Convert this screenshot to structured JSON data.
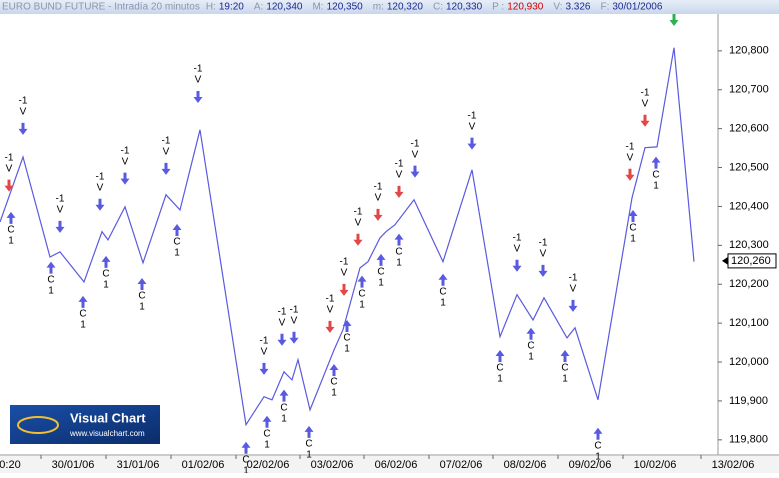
{
  "header": {
    "title": "EURO BUND FUTURE - Intradía 20 minutos",
    "fields": [
      {
        "label": "H:",
        "value": "19:20"
      },
      {
        "label": "A:",
        "value": "120,340"
      },
      {
        "label": "M:",
        "value": "120,350"
      },
      {
        "label": "m:",
        "value": "120,320"
      },
      {
        "label": "C:",
        "value": "120,330"
      },
      {
        "label": "P :",
        "value": "120,930",
        "color": "#d00000"
      },
      {
        "label": "V:",
        "value": "3.326"
      },
      {
        "label": "F:",
        "value": "30/01/2006"
      }
    ]
  },
  "logo": {
    "name": "Visual Chart",
    "url": "www.visualchart.com"
  },
  "chart_data": {
    "type": "line",
    "xlim": [
      0,
      359
    ],
    "ylim": [
      119.761,
      120.905
    ],
    "xticks": [
      {
        "value": 5,
        "label": "0:20"
      },
      {
        "value": 36.5,
        "label": "30/01/06"
      },
      {
        "value": 69,
        "label": "31/01/06"
      },
      {
        "value": 101.5,
        "label": "01/02/06"
      },
      {
        "value": 134,
        "label": "02/02/06"
      },
      {
        "value": 166,
        "label": "03/02/06"
      },
      {
        "value": 198,
        "label": "06/02/06"
      },
      {
        "value": 230.5,
        "label": "07/02/06"
      },
      {
        "value": 262.5,
        "label": "08/02/06"
      },
      {
        "value": 295,
        "label": "09/02/06"
      },
      {
        "value": 327.5,
        "label": "10/02/06"
      },
      {
        "value": 366.5,
        "label": "13/02/06"
      }
    ],
    "yticks": [
      {
        "value": 119.8,
        "label": "119,800"
      },
      {
        "value": 119.9,
        "label": "119,900"
      },
      {
        "value": 120.0,
        "label": "120,000"
      },
      {
        "value": 120.1,
        "label": "120,100"
      },
      {
        "value": 120.2,
        "label": "120,200"
      },
      {
        "value": 120.3,
        "label": "120,300"
      },
      {
        "value": 120.4,
        "label": "120,400"
      },
      {
        "value": 120.5,
        "label": "120,500"
      },
      {
        "value": 120.6,
        "label": "120,600"
      },
      {
        "value": 120.7,
        "label": "120,700"
      },
      {
        "value": 120.8,
        "label": "120,800"
      }
    ],
    "last_price": {
      "value": 120.26,
      "label": "120,260"
    },
    "series": [
      {
        "color": "#5a5ae0",
        "x": [
          0,
          11.5,
          25,
          30,
          42,
          51,
          54,
          62.5,
          71.5,
          83,
          90,
          100,
          123,
          132,
          136,
          142,
          146,
          149,
          155,
          167,
          171.5,
          180,
          184,
          190,
          193,
          197.5,
          207,
          221.5,
          236,
          250,
          258.5,
          266.5,
          272,
          283.5,
          287.5,
          299,
          316,
          322.5,
          328.5,
          337,
          347
        ],
        "values": [
          120.36,
          120.527,
          120.27,
          120.283,
          120.206,
          120.335,
          120.314,
          120.399,
          120.255,
          120.43,
          120.391,
          120.597,
          119.839,
          119.911,
          119.903,
          119.975,
          119.954,
          120.006,
          119.877,
          120.031,
          120.083,
          120.242,
          120.258,
          120.319,
          120.335,
          120.353,
          120.417,
          120.258,
          120.494,
          120.065,
          120.173,
          120.108,
          120.165,
          120.062,
          120.088,
          119.903,
          120.422,
          120.551,
          120.553,
          120.808,
          120.258
        ]
      }
    ],
    "signals": [
      {
        "side": "sell",
        "x": 4.5,
        "price": 120.438,
        "texts": [
          "-1",
          "V"
        ],
        "color": "#e04848"
      },
      {
        "side": "sell",
        "x": 11.5,
        "price": 120.584,
        "texts": [
          "-1",
          "V"
        ],
        "color": "#5a5ae0"
      },
      {
        "side": "sell",
        "x": 30,
        "price": 120.332,
        "texts": [
          "-1",
          "V"
        ],
        "color": "#5a5ae0"
      },
      {
        "side": "sell",
        "x": 50,
        "price": 120.389,
        "texts": [
          "-1",
          "V"
        ],
        "color": "#5a5ae0"
      },
      {
        "side": "sell",
        "x": 62.5,
        "price": 120.456,
        "texts": [
          "-1",
          "V"
        ],
        "color": "#5a5ae0"
      },
      {
        "side": "sell",
        "x": 83,
        "price": 120.481,
        "texts": [
          "-1",
          "V"
        ],
        "color": "#5a5ae0"
      },
      {
        "side": "sell",
        "x": 99,
        "price": 120.666,
        "texts": [
          "-1",
          "V"
        ],
        "color": "#5a5ae0"
      },
      {
        "side": "sell",
        "x": 132,
        "price": 119.967,
        "texts": [
          "-1",
          "V"
        ],
        "color": "#5a5ae0"
      },
      {
        "side": "sell",
        "x": 141,
        "price": 120.042,
        "texts": [
          "-1",
          "V"
        ],
        "color": "#5a5ae0"
      },
      {
        "side": "sell",
        "x": 147,
        "price": 120.047,
        "texts": [
          "-1",
          "V"
        ],
        "color": "#5a5ae0"
      },
      {
        "side": "sell",
        "x": 165,
        "price": 120.075,
        "texts": [
          "-1",
          "V"
        ],
        "color": "#e04848"
      },
      {
        "side": "sell",
        "x": 172,
        "price": 120.17,
        "texts": [
          "-1",
          "V"
        ],
        "color": "#e04848"
      },
      {
        "side": "sell",
        "x": 179,
        "price": 120.299,
        "texts": [
          "-1",
          "V"
        ],
        "color": "#e04848"
      },
      {
        "side": "sell",
        "x": 189,
        "price": 120.363,
        "texts": [
          "-1",
          "V"
        ],
        "color": "#e04848"
      },
      {
        "side": "sell",
        "x": 199.5,
        "price": 120.422,
        "texts": [
          "-1",
          "V"
        ],
        "color": "#e04848"
      },
      {
        "side": "sell",
        "x": 207.5,
        "price": 120.474,
        "texts": [
          "-1",
          "V"
        ],
        "color": "#5a5ae0"
      },
      {
        "side": "sell",
        "x": 236,
        "price": 120.546,
        "texts": [
          "-1",
          "V"
        ],
        "color": "#5a5ae0"
      },
      {
        "side": "sell",
        "x": 258.5,
        "price": 120.232,
        "texts": [
          "-1",
          "V"
        ],
        "color": "#5a5ae0"
      },
      {
        "side": "sell",
        "x": 271.5,
        "price": 120.219,
        "texts": [
          "-1",
          "V"
        ],
        "color": "#5a5ae0"
      },
      {
        "side": "sell",
        "x": 286.5,
        "price": 120.129,
        "texts": [
          "-1",
          "V"
        ],
        "color": "#5a5ae0"
      },
      {
        "side": "sell",
        "x": 315,
        "price": 120.466,
        "texts": [
          "-1",
          "V"
        ],
        "color": "#e04848"
      },
      {
        "side": "sell",
        "x": 322.5,
        "price": 120.605,
        "texts": [
          "-1",
          "V"
        ],
        "color": "#e04848"
      },
      {
        "side": "sell",
        "x": 337,
        "price": 120.864,
        "texts": [],
        "color": "#30b050"
      },
      {
        "side": "buy",
        "x": 5.5,
        "price": 120.386,
        "texts": [
          "C",
          "1"
        ],
        "color": "#5a5ae0"
      },
      {
        "side": "buy",
        "x": 25.5,
        "price": 120.258,
        "texts": [
          "C",
          "1"
        ],
        "color": "#5a5ae0"
      },
      {
        "side": "buy",
        "x": 41.5,
        "price": 120.17,
        "texts": [
          "C",
          "1"
        ],
        "color": "#5a5ae0"
      },
      {
        "side": "buy",
        "x": 53,
        "price": 120.273,
        "texts": [
          "C",
          "1"
        ],
        "color": "#5a5ae0"
      },
      {
        "side": "buy",
        "x": 71,
        "price": 120.216,
        "texts": [
          "C",
          "1"
        ],
        "color": "#5a5ae0"
      },
      {
        "side": "buy",
        "x": 88.5,
        "price": 120.355,
        "texts": [
          "C",
          "1"
        ],
        "color": "#5a5ae0"
      },
      {
        "side": "buy",
        "x": 123,
        "price": 119.795,
        "texts": [
          "C",
          "1"
        ],
        "color": "#5a5ae0"
      },
      {
        "side": "buy",
        "x": 133.5,
        "price": 119.862,
        "texts": [
          "C",
          "1"
        ],
        "color": "#5a5ae0"
      },
      {
        "side": "buy",
        "x": 142,
        "price": 119.929,
        "texts": [
          "C",
          "1"
        ],
        "color": "#5a5ae0"
      },
      {
        "side": "buy",
        "x": 154.5,
        "price": 119.836,
        "texts": [
          "C",
          "1"
        ],
        "color": "#5a5ae0"
      },
      {
        "side": "buy",
        "x": 167,
        "price": 119.995,
        "texts": [
          "C",
          "1"
        ],
        "color": "#5a5ae0"
      },
      {
        "side": "buy",
        "x": 173.5,
        "price": 120.108,
        "texts": [
          "C",
          "1"
        ],
        "color": "#5a5ae0"
      },
      {
        "side": "buy",
        "x": 181,
        "price": 120.222,
        "texts": [
          "C",
          "1"
        ],
        "color": "#5a5ae0"
      },
      {
        "side": "buy",
        "x": 190.5,
        "price": 120.278,
        "texts": [
          "C",
          "1"
        ],
        "color": "#5a5ae0"
      },
      {
        "side": "buy",
        "x": 199.5,
        "price": 120.33,
        "texts": [
          "C",
          "1"
        ],
        "color": "#5a5ae0"
      },
      {
        "side": "buy",
        "x": 221.5,
        "price": 120.227,
        "texts": [
          "C",
          "1"
        ],
        "color": "#5a5ae0"
      },
      {
        "side": "buy",
        "x": 250,
        "price": 120.031,
        "texts": [
          "C",
          "1"
        ],
        "color": "#5a5ae0"
      },
      {
        "side": "buy",
        "x": 265.5,
        "price": 120.088,
        "texts": [
          "C",
          "1"
        ],
        "color": "#5a5ae0"
      },
      {
        "side": "buy",
        "x": 282.5,
        "price": 120.031,
        "texts": [
          "C",
          "1"
        ],
        "color": "#5a5ae0"
      },
      {
        "side": "buy",
        "x": 299,
        "price": 119.831,
        "texts": [
          "C",
          "1"
        ],
        "color": "#5a5ae0"
      },
      {
        "side": "buy",
        "x": 316.5,
        "price": 120.391,
        "texts": [
          "C",
          "1"
        ],
        "color": "#5a5ae0"
      },
      {
        "side": "buy",
        "x": 328,
        "price": 120.528,
        "texts": [
          "C",
          "1"
        ],
        "color": "#5a5ae0"
      }
    ]
  }
}
